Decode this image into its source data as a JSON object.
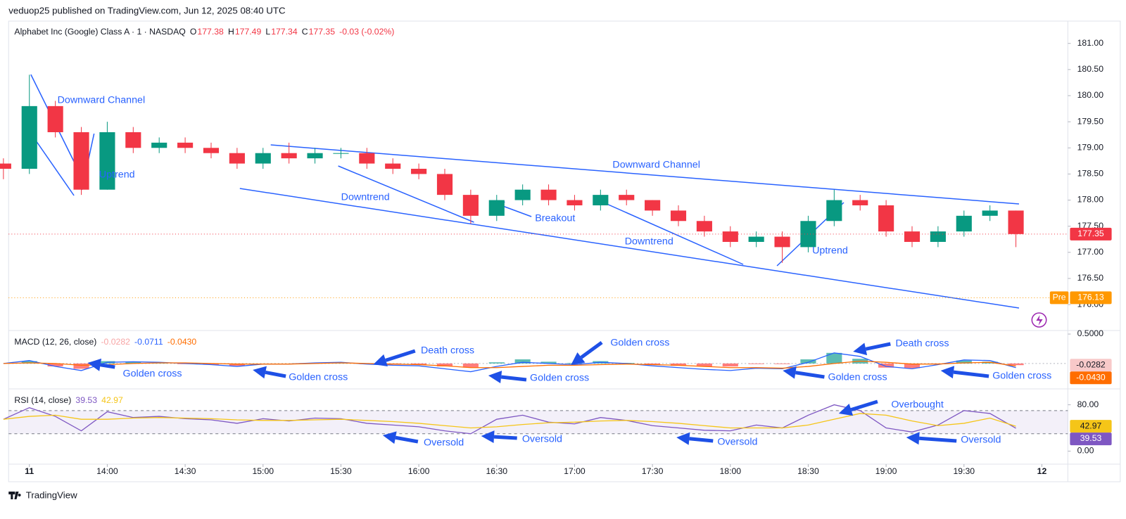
{
  "header": {
    "published": "veduop25 published on TradingView.com, Jun 12, 2025 08:40 UTC",
    "footer": "TradingView"
  },
  "chart_data": [
    {
      "type": "candlestick",
      "title": "Alphabet Inc (Google) Class A · 1 · NASDAQ",
      "legend": [
        [
          "O",
          "177.38"
        ],
        [
          "H",
          "177.49"
        ],
        [
          "L",
          "177.34"
        ],
        [
          "C",
          "177.35"
        ]
      ],
      "change": "-0.03 (-0.02%)",
      "x": [
        "13:20",
        "13:30",
        "13:40",
        "13:50",
        "14:00",
        "14:10",
        "14:20",
        "14:30",
        "14:40",
        "14:50",
        "15:00",
        "15:10",
        "15:20",
        "15:30",
        "15:40",
        "15:50",
        "16:00",
        "16:10",
        "16:20",
        "16:30",
        "16:40",
        "16:50",
        "17:00",
        "17:10",
        "17:20",
        "17:30",
        "17:40",
        "17:50",
        "18:00",
        "18:10",
        "18:20",
        "18:30",
        "18:40",
        "18:50",
        "19:00",
        "19:10",
        "19:20",
        "19:30",
        "19:40",
        "19:50"
      ],
      "open": [
        178.7,
        178.6,
        179.8,
        179.3,
        178.2,
        179.3,
        179.0,
        179.1,
        179.0,
        178.9,
        178.7,
        178.9,
        178.8,
        178.9,
        178.9,
        178.7,
        178.6,
        178.5,
        178.1,
        177.7,
        178.0,
        178.2,
        178.0,
        177.9,
        178.1,
        178.0,
        177.8,
        177.6,
        177.4,
        177.2,
        177.3,
        177.1,
        177.6,
        178.0,
        177.9,
        177.4,
        177.2,
        177.4,
        177.7,
        177.8
      ],
      "high": [
        178.8,
        180.4,
        179.9,
        179.4,
        179.5,
        179.4,
        179.2,
        179.2,
        179.1,
        179.0,
        179.0,
        179.1,
        179.0,
        179.0,
        179.0,
        178.8,
        178.7,
        178.6,
        178.2,
        178.1,
        178.3,
        178.3,
        178.1,
        178.2,
        178.2,
        178.0,
        177.9,
        177.7,
        177.5,
        177.4,
        177.4,
        177.7,
        178.2,
        178.1,
        178.0,
        177.5,
        177.5,
        177.8,
        177.9,
        177.8
      ],
      "low": [
        178.4,
        178.5,
        179.2,
        178.1,
        178.2,
        178.9,
        178.9,
        178.9,
        178.8,
        178.6,
        178.6,
        178.7,
        178.7,
        178.8,
        178.6,
        178.5,
        178.4,
        178.0,
        177.55,
        177.6,
        177.9,
        177.9,
        177.8,
        177.8,
        177.9,
        177.7,
        177.5,
        177.3,
        177.1,
        177.1,
        176.8,
        177.0,
        177.5,
        177.8,
        177.3,
        177.1,
        177.1,
        177.3,
        177.6,
        177.1
      ],
      "close": [
        178.6,
        179.8,
        179.3,
        178.2,
        179.3,
        179.0,
        179.1,
        179.0,
        178.9,
        178.7,
        178.9,
        178.8,
        178.9,
        178.9,
        178.7,
        178.6,
        178.5,
        178.1,
        177.7,
        178.0,
        178.2,
        178.0,
        177.9,
        178.1,
        178.0,
        177.8,
        177.6,
        177.4,
        177.2,
        177.3,
        177.1,
        177.6,
        178.0,
        177.9,
        177.4,
        177.2,
        177.4,
        177.7,
        177.8,
        177.35
      ],
      "colors": {
        "up": "#089981",
        "down": "#f23645"
      },
      "xlim": [
        "13:22",
        "20:10"
      ],
      "xticks": [
        {
          "value": "13:30",
          "label": "11"
        },
        "14:00",
        "14:30",
        "15:00",
        "15:30",
        "16:00",
        "16:30",
        "17:00",
        "17:30",
        "18:00",
        "18:30",
        "19:00",
        "19:30",
        {
          "value": "20:00",
          "label": "12"
        }
      ],
      "ylim": [
        175.53,
        181.36
      ],
      "yticks": [
        {
          "value": 176,
          "label": "176.00"
        },
        {
          "value": 176.5,
          "label": "176.50"
        },
        {
          "value": 177,
          "label": "177.00"
        },
        {
          "value": 177.5,
          "label": "177.50"
        },
        {
          "value": 178,
          "label": "178.00"
        },
        {
          "value": 178.5,
          "label": "178.50"
        },
        {
          "value": 179,
          "label": "179.00"
        },
        {
          "value": 179.5,
          "label": "179.50"
        },
        {
          "value": 180,
          "label": "180.00"
        },
        {
          "value": 180.5,
          "label": "180.50"
        },
        {
          "value": 181,
          "label": "181.00"
        }
      ],
      "last_price": 177.35,
      "premarket": {
        "label": "Pre",
        "value": 176.13
      },
      "annotations": [
        "Downward Channel",
        "Uptrend",
        "Downward Channel",
        "Downtrend",
        "Breakout",
        "Downtrend",
        "Uptrend"
      ]
    },
    {
      "type": "macd",
      "title": "MACD (12, 26, close)",
      "series": [
        {
          "name": "Histogram",
          "color": "#f7a5a5",
          "values": [
            0.0,
            0.04,
            -0.05,
            -0.09,
            0.04,
            0.03,
            0.01,
            -0.01,
            -0.02,
            -0.04,
            0.0,
            0.0,
            0.01,
            0.01,
            -0.01,
            -0.02,
            -0.02,
            -0.05,
            -0.07,
            0.02,
            0.07,
            0.03,
            0.01,
            0.04,
            0.01,
            -0.02,
            -0.04,
            -0.05,
            -0.05,
            -0.01,
            -0.01,
            0.07,
            0.18,
            0.08,
            -0.07,
            -0.08,
            -0.01,
            0.05,
            0.03,
            -0.0282
          ]
        },
        {
          "name": "MACD",
          "color": "#2962ff",
          "values": [
            0.0,
            0.05,
            -0.05,
            -0.12,
            0.02,
            0.03,
            0.02,
            0.0,
            -0.02,
            -0.05,
            -0.01,
            -0.01,
            0.01,
            0.02,
            -0.01,
            -0.03,
            -0.04,
            -0.09,
            -0.14,
            -0.05,
            0.02,
            0.0,
            -0.02,
            0.02,
            0.0,
            -0.04,
            -0.07,
            -0.1,
            -0.12,
            -0.08,
            -0.09,
            0.02,
            0.18,
            0.12,
            -0.05,
            -0.09,
            -0.02,
            0.06,
            0.05,
            -0.0711
          ]
        },
        {
          "name": "Signal",
          "color": "#ff6d00",
          "values": [
            0.0,
            0.01,
            0.0,
            -0.03,
            -0.02,
            0.0,
            0.01,
            0.01,
            0.0,
            -0.01,
            -0.01,
            -0.01,
            0.0,
            0.01,
            0.0,
            -0.01,
            -0.02,
            -0.04,
            -0.07,
            -0.07,
            -0.05,
            -0.03,
            -0.03,
            -0.02,
            -0.01,
            -0.02,
            -0.03,
            -0.05,
            -0.07,
            -0.07,
            -0.08,
            -0.05,
            0.0,
            0.04,
            0.02,
            -0.01,
            -0.01,
            0.01,
            0.02,
            -0.043
          ],
          "value_labels": [
            null,
            null,
            null,
            null,
            null,
            null,
            null,
            null,
            null,
            null,
            null,
            null,
            null,
            null,
            null,
            null,
            null,
            null,
            null,
            null,
            null,
            null,
            null,
            null,
            null,
            null,
            null,
            null,
            null,
            null,
            null,
            null,
            null,
            null,
            null,
            null,
            null,
            null,
            null,
            "-0.0430"
          ]
        }
      ],
      "hist_colors": {
        "up": "#26a69a",
        "down": "#ff5252"
      },
      "ylim": [
        -0.42,
        0.56
      ],
      "yticks": [
        {
          "value": 0.5,
          "label": "0.5000"
        }
      ],
      "annotations": [
        "Golden cross",
        "Golden cross",
        "Golden cross",
        "Golden cross",
        "Golden cross",
        "Golden cross",
        "Death cross",
        "Death cross"
      ]
    },
    {
      "type": "line",
      "title": "RSI (14, close)",
      "series": [
        {
          "name": "RSI",
          "color": "#7e57c2",
          "values": [
            55,
            75,
            60,
            35,
            68,
            58,
            60,
            56,
            54,
            48,
            56,
            52,
            57,
            56,
            48,
            45,
            42,
            35,
            30,
            55,
            62,
            50,
            47,
            58,
            53,
            44,
            40,
            36,
            35,
            45,
            40,
            62,
            80,
            70,
            40,
            33,
            45,
            70,
            65,
            39.53
          ]
        },
        {
          "name": "RSI-based MA",
          "color": "#f5c518",
          "values": [
            55,
            60,
            62,
            55,
            55,
            57,
            58,
            57,
            56,
            54,
            53,
            53,
            54,
            55,
            53,
            51,
            48,
            44,
            40,
            42,
            46,
            49,
            50,
            52,
            53,
            51,
            48,
            44,
            40,
            40,
            40,
            45,
            55,
            65,
            62,
            52,
            44,
            48,
            57,
            42.97
          ]
        }
      ],
      "levels": [
        70,
        30
      ],
      "ylim": [
        -22.5,
        105
      ],
      "yticks": [
        {
          "value": 80,
          "label": "80.00"
        },
        {
          "value": 0,
          "label": "0.00"
        }
      ],
      "annotations": [
        "Oversold",
        "Oversold",
        "Oversold",
        "Oversold",
        "Overbought"
      ]
    }
  ]
}
